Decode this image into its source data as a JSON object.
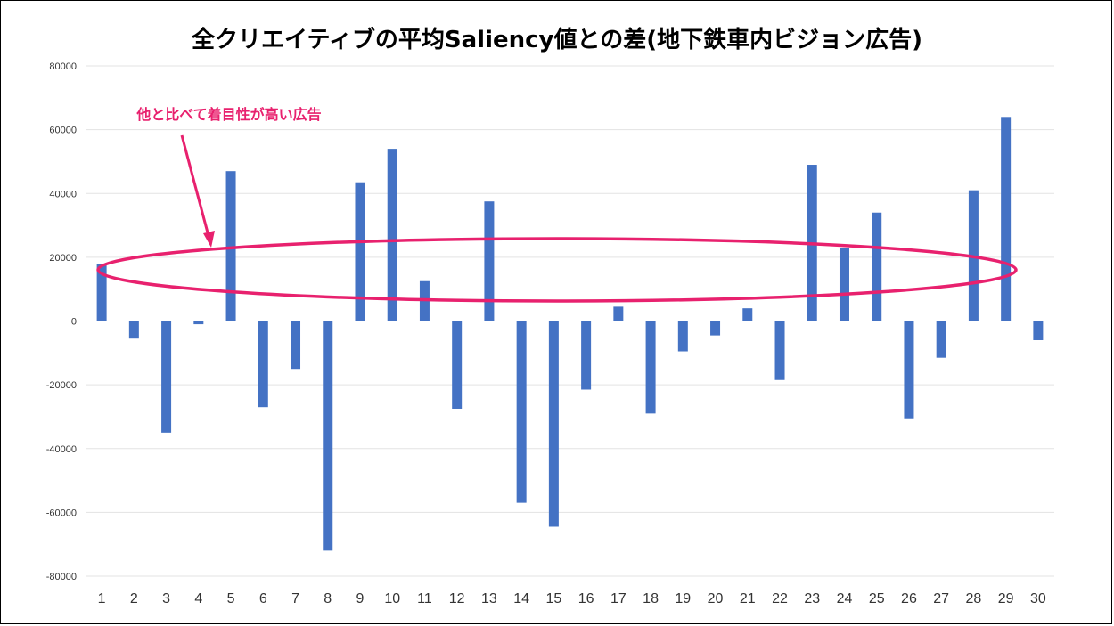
{
  "chart_data": {
    "type": "bar",
    "title": "全クリエイティブの平均Saliency値との差(地下鉄車内ビジョン広告)",
    "categories": [
      "1",
      "2",
      "3",
      "4",
      "5",
      "6",
      "7",
      "8",
      "9",
      "10",
      "11",
      "12",
      "13",
      "14",
      "15",
      "16",
      "17",
      "18",
      "19",
      "20",
      "21",
      "22",
      "23",
      "24",
      "25",
      "26",
      "27",
      "28",
      "29",
      "30"
    ],
    "series": [
      {
        "values": [
          18000,
          -5500,
          -35000,
          -1000,
          47000,
          -27000,
          -15000,
          -72000,
          43500,
          54000,
          12500,
          -27500,
          37500,
          -57000,
          -64500,
          -21500,
          4500,
          -29000,
          -9500,
          -4500,
          4000,
          -18500,
          49000,
          23000,
          34000,
          -30500,
          -11500,
          41000,
          64000,
          -6000
        ],
        "color": "#4472C4"
      }
    ],
    "ylim": [
      -80000,
      80000
    ],
    "yticks": [
      "80000",
      "60000",
      "40000",
      "20000",
      "0",
      "-20000",
      "-40000",
      "-60000",
      "-80000"
    ],
    "grid": true,
    "legend": "none",
    "annotation": {
      "text": "他と比べて着目性が高い広告",
      "color": "#E8216E"
    }
  }
}
